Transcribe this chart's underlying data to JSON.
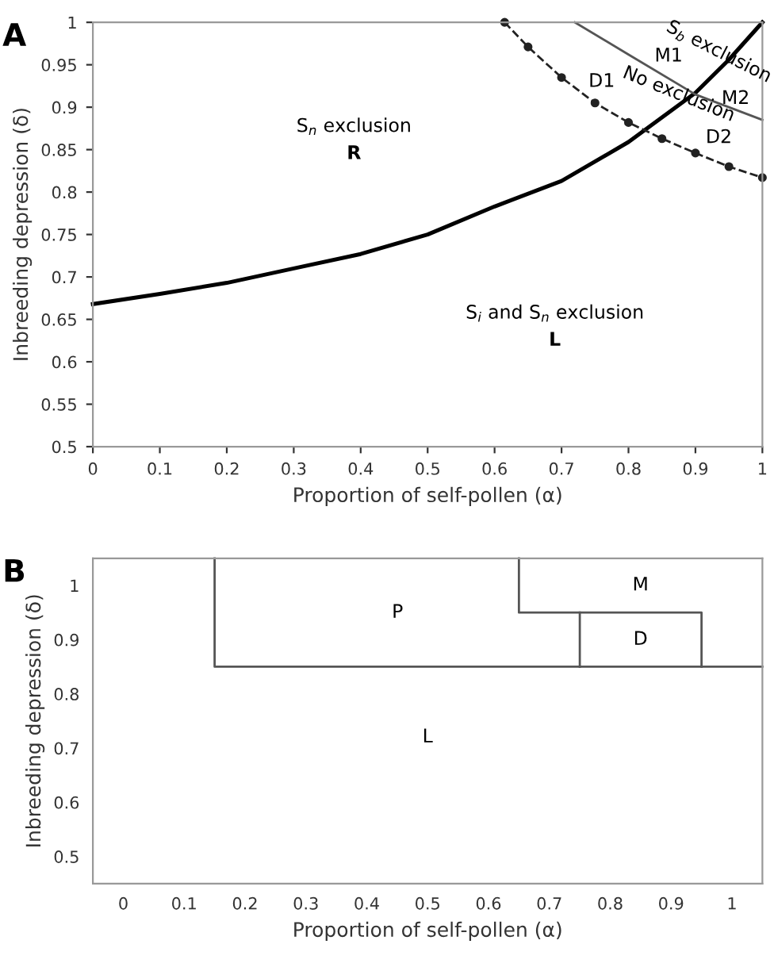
{
  "chart_data": [
    {
      "type": "line",
      "title": "A",
      "xlabel": "Proportion of self-pollen (α)",
      "ylabel": "Inbreeding depression (δ)",
      "xlim": [
        0,
        1
      ],
      "ylim": [
        0.5,
        1
      ],
      "xticks": [
        0,
        0.1,
        0.2,
        0.3,
        0.4,
        0.5,
        0.6,
        0.7,
        0.8,
        0.9,
        1
      ],
      "yticks": [
        0.5,
        0.55,
        0.6,
        0.65,
        0.7,
        0.75,
        0.8,
        0.85,
        0.9,
        0.95,
        1
      ],
      "grid": false,
      "legend": false,
      "series": [
        {
          "color": "#000000",
          "line_style": "solid",
          "marker": "none",
          "x": [
            0,
            0.1,
            0.2,
            0.3,
            0.4,
            0.5,
            0.6,
            0.7,
            0.8,
            0.9,
            0.95,
            1
          ],
          "values": [
            0.668,
            0.68,
            0.693,
            0.71,
            0.727,
            0.75,
            0.783,
            0.813,
            0.859,
            0.917,
            0.956,
            1
          ]
        },
        {
          "color": "#222222",
          "line_style": "dashed",
          "marker": "circle",
          "x": [
            0.615,
            0.65,
            0.7,
            0.75,
            0.8,
            0.85,
            0.9,
            0.95,
            1
          ],
          "values": [
            1,
            0.971,
            0.935,
            0.905,
            0.882,
            0.863,
            0.846,
            0.83,
            0.817
          ]
        },
        {
          "color": "#555555",
          "line_style": "solid",
          "marker": "none",
          "x": [
            0.72,
            0.8,
            0.9,
            1
          ],
          "values": [
            1,
            0.962,
            0.915,
            0.885
          ]
        }
      ],
      "annotations": [
        "S$_{n}$ exclusion",
        "R",
        "S$_{i}$ and S$_{n}$ exclusion",
        "L",
        "D1",
        "M1",
        "M2",
        "D2",
        "S$_{b}$ exclusion",
        "No exclusion"
      ]
    },
    {
      "type": "line",
      "title": "B",
      "xlabel": "Proportion of self-pollen (α)",
      "ylabel": "Inbreeding depression (δ)",
      "xlim": [
        -0.05,
        1.05
      ],
      "ylim": [
        0.45,
        1.05
      ],
      "xticks": [
        0,
        0.1,
        0.2,
        0.3,
        0.4,
        0.5,
        0.6,
        0.7,
        0.8,
        0.9,
        1
      ],
      "yticks": [
        0.5,
        0.6,
        0.7,
        0.8,
        0.9,
        1
      ],
      "grid": false,
      "legend": false,
      "series": [
        {
          "color": "#555555",
          "line_style": "solid",
          "marker": "none",
          "x": [
            0.15,
            0.15,
            1.05
          ],
          "values": [
            1.05,
            0.85,
            0.85
          ]
        },
        {
          "color": "#555555",
          "line_style": "solid",
          "marker": "none",
          "x": [
            0.65,
            0.65,
            0.95,
            0.95
          ],
          "values": [
            1.05,
            0.95,
            0.95,
            0.85
          ]
        },
        {
          "color": "#555555",
          "line_style": "solid",
          "marker": "none",
          "x": [
            0.75,
            0.75
          ],
          "values": [
            0.85,
            0.95
          ]
        }
      ],
      "annotations": [
        "P",
        "M",
        "D",
        "L"
      ]
    }
  ]
}
